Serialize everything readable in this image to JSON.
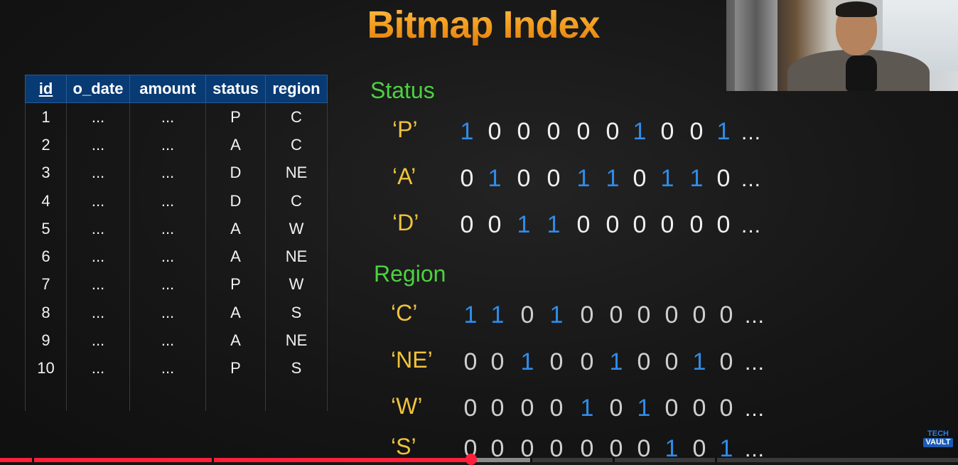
{
  "title": "Bitmap Index",
  "table": {
    "headers": [
      "id",
      "o_date",
      "amount",
      "status",
      "region"
    ],
    "rows": [
      [
        "1",
        "...",
        "...",
        "P",
        "C"
      ],
      [
        "2",
        "...",
        "...",
        "A",
        "C"
      ],
      [
        "3",
        "...",
        "...",
        "D",
        "NE"
      ],
      [
        "4",
        "...",
        "...",
        "D",
        "C"
      ],
      [
        "5",
        "...",
        "...",
        "A",
        "W"
      ],
      [
        "6",
        "...",
        "...",
        "A",
        "NE"
      ],
      [
        "7",
        "...",
        "...",
        "P",
        "W"
      ],
      [
        "8",
        "...",
        "...",
        "A",
        "S"
      ],
      [
        "9",
        "...",
        "...",
        "A",
        "NE"
      ],
      [
        "10",
        "...",
        "...",
        "P",
        "S"
      ]
    ]
  },
  "status": {
    "heading": "Status",
    "rows": [
      {
        "label": "‘P’",
        "bits": [
          1,
          0,
          0,
          0,
          0,
          0,
          1,
          0,
          0,
          1
        ],
        "ellipsis": "..."
      },
      {
        "label": "‘A’",
        "bits": [
          0,
          1,
          0,
          0,
          1,
          1,
          0,
          1,
          1,
          0
        ],
        "ellipsis": "..."
      },
      {
        "label": "‘D’",
        "bits": [
          0,
          0,
          1,
          1,
          0,
          0,
          0,
          0,
          0,
          0
        ],
        "ellipsis": "..."
      }
    ]
  },
  "region": {
    "heading": "Region",
    "rows": [
      {
        "label": "‘C’",
        "bits": [
          1,
          1,
          0,
          1,
          0,
          0,
          0,
          0,
          0,
          0
        ],
        "ellipsis": "..."
      },
      {
        "label": "‘NE’",
        "bits": [
          0,
          0,
          1,
          0,
          0,
          1,
          0,
          0,
          1,
          0
        ],
        "ellipsis": "..."
      },
      {
        "label": "‘W’",
        "bits": [
          0,
          0,
          0,
          0,
          1,
          0,
          1,
          0,
          0,
          0
        ],
        "ellipsis": "..."
      },
      {
        "label": "‘S’",
        "bits": [
          0,
          0,
          0,
          0,
          0,
          0,
          0,
          1,
          0,
          1
        ],
        "ellipsis": "..."
      }
    ]
  },
  "watermark": {
    "line1": "TECH",
    "line2": "VAULT"
  },
  "colors": {
    "one_bit": "#2f8ce8",
    "heading": "#4cd23f",
    "label": "#f0c33c",
    "header_bg": "#083a73",
    "progress": "#ff1f3a"
  },
  "video": {
    "progress_fraction": 0.492,
    "buffered_fraction": 0.555
  }
}
